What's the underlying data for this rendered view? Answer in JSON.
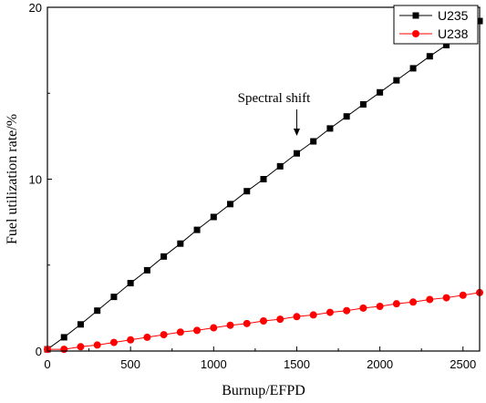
{
  "chart_data": {
    "type": "line",
    "xlabel": "Burnup/EFPD",
    "ylabel": "Fuel utilization rate/%",
    "xlim": [
      0,
      2600
    ],
    "ylim": [
      0,
      20
    ],
    "x_ticks": [
      "0",
      "500",
      "1000",
      "1500",
      "2000",
      "2500"
    ],
    "y_ticks": [
      "0",
      "10",
      "20"
    ],
    "legend_position": "top-right",
    "annotation": {
      "text": "Spectral shift",
      "x": 1500
    },
    "x": [
      0,
      100,
      200,
      300,
      400,
      500,
      600,
      700,
      800,
      900,
      1000,
      1100,
      1200,
      1300,
      1400,
      1500,
      1600,
      1700,
      1800,
      1900,
      2000,
      2100,
      2200,
      2300,
      2400,
      2500,
      2600
    ],
    "series": [
      {
        "name": "U235",
        "color": "#000000",
        "marker": "square",
        "values": [
          0.1,
          0.8,
          1.55,
          2.35,
          3.15,
          3.95,
          4.7,
          5.5,
          6.25,
          7.05,
          7.8,
          8.55,
          9.3,
          10.0,
          10.75,
          11.5,
          12.2,
          12.95,
          13.65,
          14.35,
          15.05,
          15.75,
          16.45,
          17.15,
          17.8,
          18.5,
          19.2
        ]
      },
      {
        "name": "U238",
        "color": "#ff0000",
        "marker": "circle",
        "values": [
          0.1,
          0.1,
          0.25,
          0.35,
          0.5,
          0.65,
          0.8,
          0.95,
          1.1,
          1.2,
          1.35,
          1.5,
          1.6,
          1.75,
          1.85,
          2.0,
          2.1,
          2.25,
          2.35,
          2.5,
          2.6,
          2.75,
          2.85,
          3.0,
          3.1,
          3.25,
          3.4
        ]
      }
    ]
  }
}
